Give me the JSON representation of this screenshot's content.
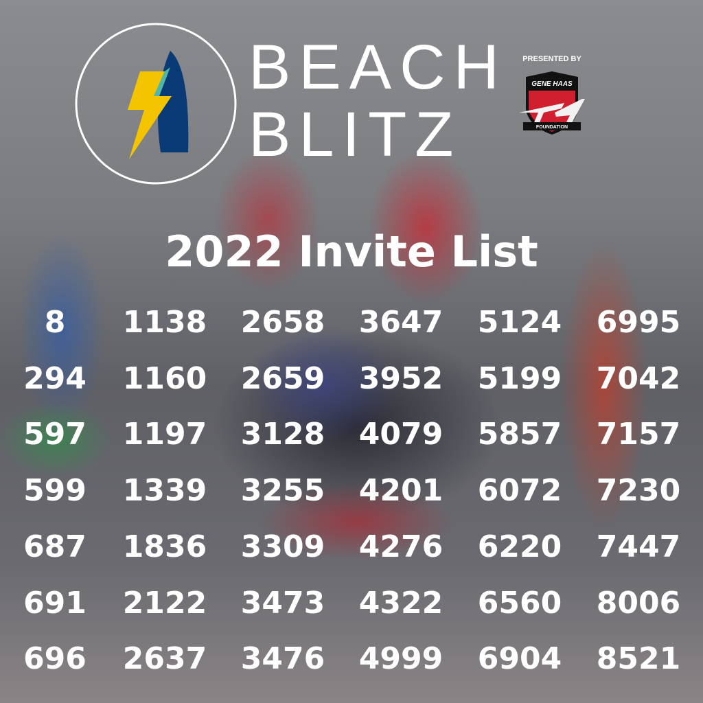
{
  "brand": {
    "line1": "BEACH",
    "line2": "BLITZ",
    "colors": {
      "surfboard": "#0a3a75",
      "bolt": "#f5c400",
      "accent": "#4fb7a8"
    }
  },
  "sponsor": {
    "presented_by": "PRESENTED BY",
    "name_top": "GENE HAAS",
    "name_bottom": "FOUNDATION"
  },
  "title": "2022 Invite List",
  "columns": [
    [
      "8",
      "294",
      "597",
      "599",
      "687",
      "691",
      "696"
    ],
    [
      "1138",
      "1160",
      "1197",
      "1339",
      "1836",
      "2122",
      "2637"
    ],
    [
      "2658",
      "2659",
      "3128",
      "3255",
      "3309",
      "3473",
      "3476"
    ],
    [
      "3647",
      "3952",
      "4079",
      "4201",
      "4276",
      "4322",
      "4999"
    ],
    [
      "5124",
      "5199",
      "5857",
      "6072",
      "6220",
      "6560",
      "6904"
    ],
    [
      "6995",
      "7042",
      "7157",
      "7230",
      "7447",
      "8006",
      "8521"
    ]
  ]
}
